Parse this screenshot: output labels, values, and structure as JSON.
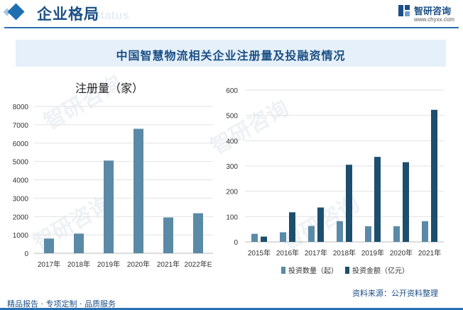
{
  "header": {
    "title": "企业格局",
    "ghost_text": "Status"
  },
  "brand": {
    "name": "智研咨询",
    "url": "www.chyxx.com"
  },
  "main_title": "中国智慧物流相关企业注册量及投融资情况",
  "watermark": "智研咨询",
  "colors": {
    "bar_light": "#5b8aa6",
    "bar_dark": "#1d4e6e",
    "header": "#1b4f85",
    "title_band": "#e6f0fa"
  },
  "chart_data": [
    {
      "type": "bar",
      "title": "注册量（家）",
      "categories": [
        "2017年",
        "2018年",
        "2019年",
        "2020年",
        "2021年",
        "2022年E"
      ],
      "values": [
        800,
        1070,
        5050,
        6780,
        1950,
        2180
      ],
      "ylim": [
        0,
        8000
      ],
      "yticks": [
        0,
        1000,
        2000,
        3000,
        4000,
        5000,
        6000,
        7000,
        8000
      ],
      "xlabel": "",
      "ylabel": "",
      "grid": true
    },
    {
      "type": "bar",
      "categories": [
        "2015年",
        "2016年",
        "2017年",
        "2018年",
        "2019年",
        "2020年",
        "2021年"
      ],
      "series": [
        {
          "name": "投资数量（起）",
          "values": [
            32,
            38,
            63,
            82,
            62,
            62,
            82
          ]
        },
        {
          "name": "投资金额（亿元）",
          "values": [
            21,
            117,
            136,
            305,
            336,
            315,
            522
          ]
        }
      ],
      "ylim": [
        0,
        600
      ],
      "yticks": [
        0,
        100,
        200,
        300,
        400,
        500,
        600
      ],
      "legend": "bottom",
      "grid": true
    }
  ],
  "footer": {
    "left": "精品报告 · 专项定制 · 品质服务",
    "right": "资料来源：公开资料整理"
  }
}
